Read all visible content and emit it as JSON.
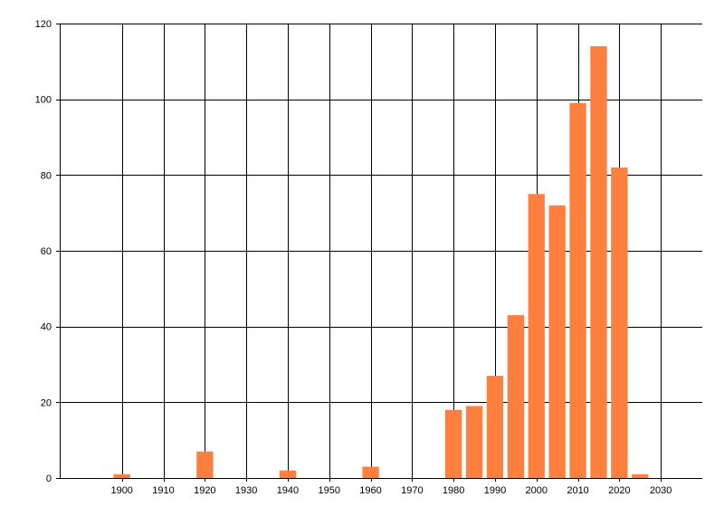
{
  "chart_data": {
    "type": "bar",
    "title": "",
    "xlabel": "",
    "ylabel": "",
    "x": [
      1900,
      1920,
      1940,
      1960,
      1980,
      1985,
      1990,
      1995,
      2000,
      2005,
      2010,
      2015,
      2020,
      2025
    ],
    "values": [
      1,
      7,
      2,
      3,
      18,
      19,
      27,
      43,
      75,
      72,
      99,
      114,
      82,
      1
    ],
    "xlim": [
      1885,
      2040
    ],
    "ylim": [
      0,
      120
    ],
    "x_ticks": [
      1900,
      1910,
      1920,
      1930,
      1940,
      1950,
      1960,
      1970,
      1980,
      1990,
      2000,
      2010,
      2020,
      2030
    ],
    "y_ticks": [
      0,
      20,
      40,
      60,
      80,
      100,
      120
    ],
    "grid": true,
    "legend": "none",
    "bar_color": "#ff7f3f",
    "grid_color": "#000000"
  }
}
